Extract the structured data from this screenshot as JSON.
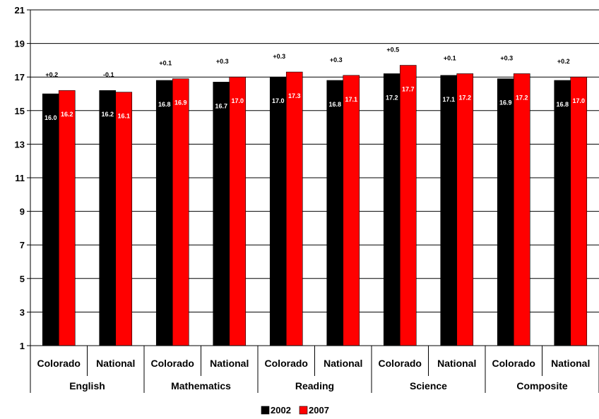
{
  "chart_data": {
    "type": "bar",
    "ylim": [
      1,
      21
    ],
    "yticks": [
      1,
      3,
      5,
      7,
      9,
      11,
      13,
      15,
      17,
      19,
      21
    ],
    "grid": true,
    "legend_position": "bottom-center",
    "groups": [
      {
        "name": "English",
        "categories": [
          "Colorado",
          "National"
        ]
      },
      {
        "name": "Mathematics",
        "categories": [
          "Colorado",
          "National"
        ]
      },
      {
        "name": "Reading",
        "categories": [
          "Colorado",
          "National"
        ]
      },
      {
        "name": "Science",
        "categories": [
          "Colorado",
          "National"
        ]
      },
      {
        "name": "Composite",
        "categories": [
          "Colorado",
          "National"
        ]
      }
    ],
    "categories": [
      "Colorado",
      "National",
      "Colorado",
      "National",
      "Colorado",
      "National",
      "Colorado",
      "National",
      "Colorado",
      "National"
    ],
    "series": [
      {
        "name": "2002",
        "color": "#000000",
        "values": [
          16.0,
          16.2,
          16.8,
          16.7,
          17.0,
          16.8,
          17.2,
          17.1,
          16.9,
          16.8
        ],
        "labels": [
          "16.0",
          "16.2",
          "16.8",
          "16.7",
          "17.0",
          "16.8",
          "17.2",
          "17.1",
          "16.9",
          "16.8"
        ]
      },
      {
        "name": "2007",
        "color": "#ff0000",
        "values": [
          16.2,
          16.1,
          16.9,
          17.0,
          17.3,
          17.1,
          17.7,
          17.2,
          17.2,
          17.0
        ],
        "labels": [
          "16.2",
          "16.1",
          "16.9",
          "17.0",
          "17.3",
          "17.1",
          "17.7",
          "17.2",
          "17.2",
          "17.0"
        ]
      }
    ],
    "differences": [
      "+0.2",
      "-0.1",
      "+0.1",
      "+0.3",
      "+0.3",
      "+0.3",
      "+0.5",
      "+0.1",
      "+0.3",
      "+0.2"
    ]
  }
}
